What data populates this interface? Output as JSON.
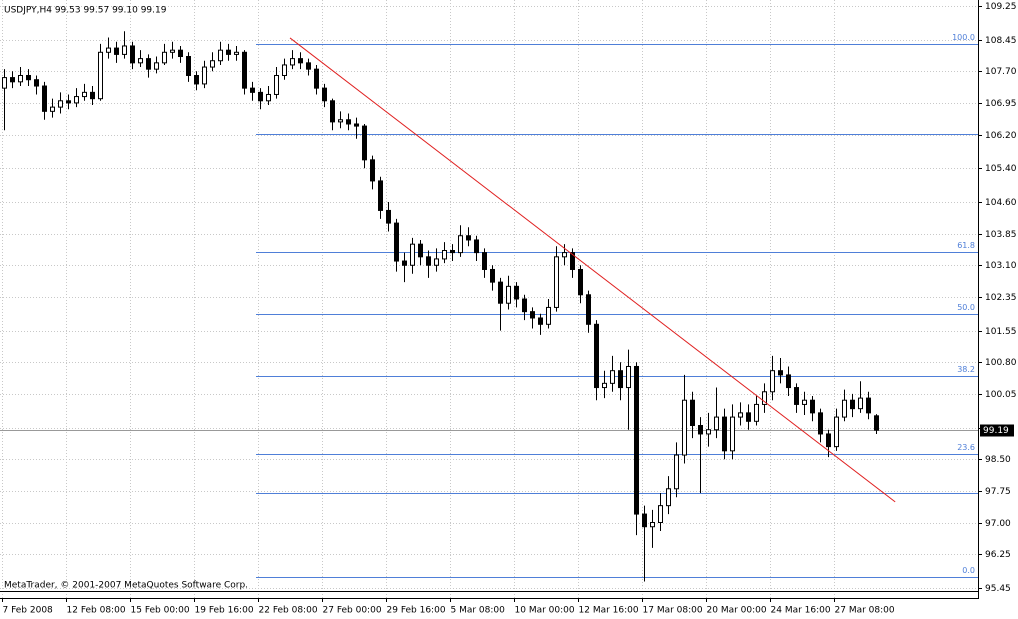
{
  "chart_data": {
    "type": "candlestick",
    "title": "USDJPY,H4  99.53 99.57 99.10 99.19",
    "watermark": "MetaTrader, © 2001-2007 MetaQuotes Software Corp.",
    "ylim": [
      95.21,
      109.39
    ],
    "yticks": [
      109.25,
      108.45,
      {
        "value": 107.7,
        "label": "107.70"
      },
      106.95,
      {
        "value": 106.2,
        "label": "106.20"
      },
      {
        "value": 105.4,
        "label": "105.40"
      },
      {
        "value": 104.6,
        "label": "104.60"
      },
      103.85,
      {
        "value": 103.1,
        "label": "103.10"
      },
      102.35,
      101.55,
      {
        "value": 100.8,
        "label": "100.80"
      },
      100.05,
      99.25,
      {
        "value": 98.5,
        "label": "98.50"
      },
      97.75,
      {
        "value": 97,
        "label": "97.00"
      },
      96.25,
      95.45
    ],
    "xticks": [
      {
        "value": 0,
        "label": "7 Feb 2008"
      },
      {
        "value": 8,
        "label": "12 Feb 08:00"
      },
      {
        "value": 16,
        "label": "15 Feb 00:00"
      },
      {
        "value": 24,
        "label": "19 Feb 16:00"
      },
      {
        "value": 32,
        "label": "22 Feb 08:00"
      },
      {
        "value": 40,
        "label": "27 Feb 00:00"
      },
      {
        "value": 48,
        "label": "29 Feb 16:00"
      },
      {
        "value": 56,
        "label": "5 Mar 08:00"
      },
      {
        "value": 64,
        "label": "10 Mar 00:00"
      },
      {
        "value": 72,
        "label": "12 Mar 16:00"
      },
      {
        "value": 80,
        "label": "17 Mar 08:00"
      },
      {
        "value": 88,
        "label": "20 Mar 00:00"
      },
      {
        "value": 96,
        "label": "24 Mar 16:00"
      },
      {
        "value": 104,
        "label": "27 Mar 08:00"
      }
    ],
    "grid": true,
    "bull_color": "#ffffff",
    "bear_color": "#000000",
    "candles": {
      "open": [
        107.3,
        107.55,
        107.45,
        107.6,
        107.5,
        107.35,
        106.75,
        106.85,
        107.0,
        106.95,
        107.1,
        107.2,
        107.05,
        108.15,
        108.25,
        108.1,
        108.3,
        107.9,
        108.0,
        107.75,
        107.9,
        108.15,
        108.2,
        108.05,
        107.6,
        107.4,
        107.8,
        107.95,
        108.2,
        108.1,
        108.15,
        107.3,
        107.2,
        107.0,
        107.15,
        107.6,
        107.85,
        108.0,
        107.9,
        107.75,
        107.3,
        107.0,
        106.5,
        106.55,
        106.45,
        106.4,
        105.6,
        105.1,
        104.4,
        104.1,
        103.2,
        103.1,
        103.6,
        103.3,
        103.1,
        103.25,
        103.45,
        103.4,
        103.8,
        103.7,
        103.4,
        103.0,
        102.7,
        102.2,
        102.6,
        102.3,
        102.0,
        101.85,
        101.7,
        102.1,
        103.3,
        103.4,
        103.0,
        102.4,
        101.7,
        100.2,
        100.3,
        100.6,
        100.2,
        100.7,
        97.2,
        96.9,
        97.0,
        97.4,
        97.8,
        98.6,
        99.9,
        99.3,
        99.1,
        99.2,
        99.5,
        98.7,
        99.5,
        99.6,
        99.4,
        99.8,
        100.1,
        100.6,
        100.5,
        100.2,
        99.8,
        99.9,
        99.6,
        99.1,
        98.8,
        99.5,
        99.9,
        99.7,
        99.95,
        99.53
      ],
      "high": [
        107.75,
        107.7,
        107.8,
        107.75,
        107.6,
        107.45,
        107.05,
        107.2,
        107.15,
        107.3,
        107.4,
        107.35,
        108.35,
        108.5,
        108.4,
        108.65,
        108.4,
        108.2,
        108.1,
        108.05,
        108.35,
        108.4,
        108.3,
        108.15,
        107.7,
        107.95,
        108.15,
        108.4,
        108.35,
        108.3,
        108.2,
        107.45,
        107.3,
        107.35,
        107.8,
        108.0,
        108.2,
        108.15,
        108.0,
        107.85,
        107.4,
        107.05,
        106.75,
        106.7,
        106.6,
        106.45,
        105.7,
        105.2,
        104.6,
        104.2,
        103.4,
        103.75,
        103.7,
        103.45,
        103.5,
        103.65,
        103.6,
        104.05,
        104.0,
        103.8,
        103.5,
        103.1,
        102.8,
        102.85,
        102.7,
        102.4,
        102.1,
        101.95,
        102.3,
        103.55,
        103.6,
        103.5,
        103.1,
        102.5,
        101.8,
        100.6,
        100.95,
        100.8,
        101.1,
        100.8,
        97.4,
        97.3,
        97.7,
        98.1,
        98.9,
        100.5,
        100.1,
        99.5,
        99.6,
        100.2,
        99.7,
        99.8,
        99.85,
        99.8,
        100.0,
        100.3,
        100.95,
        100.9,
        100.7,
        100.3,
        100.1,
        100.0,
        99.7,
        99.2,
        99.7,
        100.15,
        100.05,
        100.35,
        100.1,
        99.57
      ],
      "low": [
        106.3,
        107.3,
        107.35,
        107.35,
        107.15,
        106.55,
        106.6,
        106.7,
        106.8,
        106.85,
        107.0,
        106.9,
        107.0,
        108.0,
        107.9,
        108.0,
        107.75,
        107.8,
        107.55,
        107.65,
        107.85,
        108.0,
        107.9,
        107.45,
        107.25,
        107.3,
        107.7,
        107.85,
        107.95,
        107.95,
        107.15,
        107.0,
        106.8,
        106.9,
        107.05,
        107.5,
        107.75,
        107.75,
        107.6,
        107.15,
        106.85,
        106.3,
        106.35,
        106.3,
        106.1,
        105.4,
        104.9,
        104.2,
        103.9,
        102.95,
        102.7,
        102.9,
        103.1,
        102.8,
        102.95,
        103.15,
        103.2,
        103.3,
        103.55,
        103.2,
        102.8,
        102.5,
        101.55,
        102.05,
        102.1,
        101.8,
        101.6,
        101.45,
        101.6,
        102.0,
        103.1,
        102.8,
        102.2,
        101.5,
        99.9,
        99.95,
        100.1,
        99.9,
        99.2,
        96.7,
        95.6,
        96.4,
        96.8,
        97.2,
        97.6,
        98.4,
        99.0,
        97.7,
        98.8,
        99.0,
        98.5,
        98.5,
        99.3,
        99.2,
        99.3,
        99.6,
        99.9,
        100.3,
        100.0,
        99.6,
        99.55,
        99.4,
        98.9,
        98.55,
        98.7,
        99.4,
        99.5,
        99.6,
        99.45,
        99.1
      ],
      "close": [
        107.55,
        107.45,
        107.6,
        107.5,
        107.35,
        106.75,
        106.85,
        107.0,
        106.95,
        107.1,
        107.2,
        107.05,
        108.15,
        108.25,
        108.1,
        108.3,
        107.9,
        108.0,
        107.75,
        107.9,
        108.15,
        108.2,
        108.05,
        107.6,
        107.4,
        107.8,
        107.95,
        108.2,
        108.1,
        108.15,
        107.3,
        107.2,
        107.0,
        107.15,
        107.6,
        107.85,
        108.0,
        107.9,
        107.75,
        107.3,
        107.0,
        106.5,
        106.55,
        106.45,
        106.4,
        105.6,
        105.1,
        104.4,
        104.1,
        103.2,
        103.1,
        103.6,
        103.3,
        103.1,
        103.25,
        103.45,
        103.4,
        103.8,
        103.7,
        103.4,
        103.0,
        102.7,
        102.2,
        102.6,
        102.3,
        102.0,
        101.85,
        101.7,
        102.1,
        103.3,
        103.4,
        103.0,
        102.4,
        101.7,
        100.2,
        100.3,
        100.6,
        100.2,
        100.7,
        97.2,
        96.9,
        97.0,
        97.4,
        97.8,
        98.6,
        99.9,
        99.3,
        99.1,
        99.2,
        99.5,
        98.7,
        99.5,
        99.6,
        99.4,
        99.8,
        100.1,
        100.6,
        100.5,
        100.2,
        99.8,
        99.9,
        99.6,
        99.1,
        98.8,
        99.5,
        99.9,
        99.7,
        99.95,
        99.6,
        99.19
      ]
    },
    "fibo": {
      "color": "#4f7fd8",
      "start": 32,
      "levels": [
        100,
        61.8,
        50,
        38.2,
        23.6,
        0
      ],
      "level_labels": [
        "100.0",
        "61.8",
        "50.0",
        "38.2",
        "23.6",
        "0.0"
      ],
      "prices": [
        108.35,
        103.42,
        101.95,
        100.48,
        98.63,
        95.71
      ],
      "extra_prices": [
        106.22,
        97.7
      ]
    },
    "trendline": {
      "color": "#e02020",
      "x": [
        35.75,
        111.4
      ],
      "y": [
        108.49,
        97.49
      ]
    },
    "current_price": 99.19
  }
}
